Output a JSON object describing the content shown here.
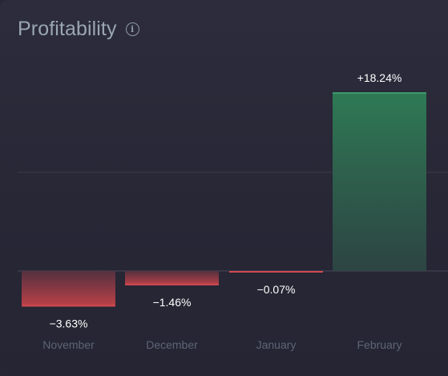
{
  "widget": {
    "title": "Profitability",
    "info_icon": "info-icon"
  },
  "colors": {
    "background": "#262635",
    "positive": "#2e7a55",
    "negative": "#c04148",
    "title": "#9aa6b2",
    "category": "#5d6675",
    "value_label": "#ffffff"
  },
  "chart_data": {
    "type": "bar",
    "categories": [
      "November",
      "December",
      "January",
      "February"
    ],
    "values": [
      -3.63,
      -1.46,
      -0.07,
      18.24
    ],
    "value_labels": [
      "−3.63%",
      "−1.46%",
      "−0.07%",
      "+18.24%"
    ],
    "title": "Profitability",
    "xlabel": "",
    "ylabel": "",
    "grid": true,
    "unit": "%"
  }
}
